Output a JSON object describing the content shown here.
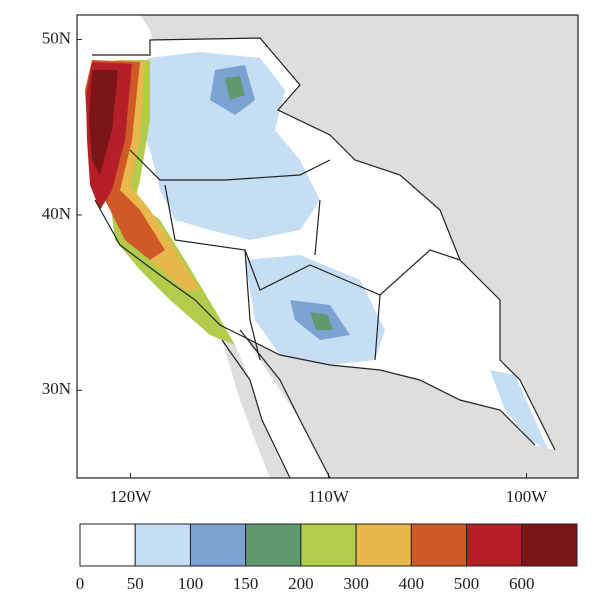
{
  "map": {
    "xlim": [
      -122.7,
      -97.4
    ],
    "ylim": [
      25.0,
      51.4
    ],
    "xticks": [
      {
        "value": -120,
        "label": "120W"
      },
      {
        "value": -110,
        "label": "110W"
      },
      {
        "value": -100,
        "label": "100W"
      }
    ],
    "yticks": [
      {
        "value": 50,
        "label": "50N"
      },
      {
        "value": 40,
        "label": "40N"
      },
      {
        "value": 30,
        "label": "30N"
      }
    ],
    "colorbar": {
      "bounds": [
        0,
        50,
        100,
        150,
        200,
        300,
        400,
        500,
        600
      ],
      "colors": [
        "#ffffff",
        "#c5def3",
        "#7ba2d3",
        "#5f9a6e",
        "#b3cc4c",
        "#e8b84c",
        "#cf5a28",
        "#b51f27",
        "#7c1515"
      ]
    }
  }
}
